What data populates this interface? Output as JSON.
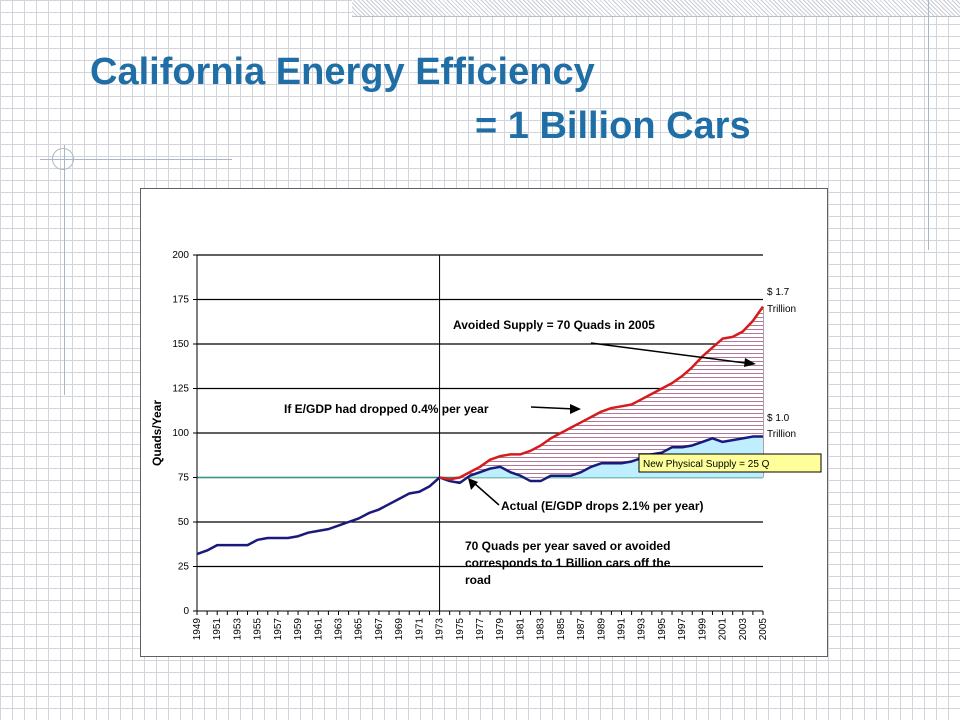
{
  "slide": {
    "title_line1": "California Energy Efficiency",
    "title_line2": "= 1 Billion Cars"
  },
  "chart_data": {
    "type": "area",
    "ylabel": "Quads/Year",
    "xlabel": "",
    "ylim": [
      0,
      200
    ],
    "yticks": [
      0,
      25,
      50,
      75,
      100,
      125,
      150,
      175,
      200
    ],
    "xlim": [
      1949,
      2005
    ],
    "xticks": [
      "1949",
      "1951",
      "1953",
      "1955",
      "1957",
      "1959",
      "1961",
      "1963",
      "1965",
      "1967",
      "1969",
      "1971",
      "1973",
      "1975",
      "1977",
      "1979",
      "1981",
      "1983",
      "1985",
      "1987",
      "1989",
      "1991",
      "1993",
      "1995",
      "1997",
      "1999",
      "2001",
      "2003",
      "2005"
    ],
    "grid": "horizontal",
    "reference_year": 1973,
    "baseline_value": 75,
    "series": [
      {
        "name": "",
        "color": "#1a1a7a",
        "points": [
          [
            1949,
            32
          ],
          [
            1950,
            34
          ],
          [
            1951,
            37
          ],
          [
            1952,
            37
          ],
          [
            1953,
            37
          ],
          [
            1954,
            37
          ],
          [
            1955,
            40
          ],
          [
            1956,
            41
          ],
          [
            1957,
            41
          ],
          [
            1958,
            41
          ],
          [
            1959,
            42
          ],
          [
            1960,
            44
          ],
          [
            1961,
            45
          ],
          [
            1962,
            46
          ],
          [
            1963,
            48
          ],
          [
            1964,
            50
          ],
          [
            1965,
            52
          ],
          [
            1966,
            55
          ],
          [
            1967,
            57
          ],
          [
            1968,
            60
          ],
          [
            1969,
            63
          ],
          [
            1970,
            66
          ],
          [
            1971,
            67
          ],
          [
            1972,
            70
          ],
          [
            1973,
            75
          ],
          [
            1974,
            73
          ],
          [
            1975,
            72
          ],
          [
            1976,
            76
          ],
          [
            1977,
            78
          ],
          [
            1978,
            80
          ],
          [
            1979,
            81
          ],
          [
            1980,
            78
          ],
          [
            1981,
            76
          ],
          [
            1982,
            73
          ],
          [
            1983,
            73
          ],
          [
            1984,
            76
          ],
          [
            1985,
            76
          ],
          [
            1986,
            76
          ],
          [
            1987,
            78
          ],
          [
            1988,
            81
          ],
          [
            1989,
            83
          ],
          [
            1990,
            83
          ],
          [
            1991,
            83
          ],
          [
            1992,
            84
          ],
          [
            1993,
            86
          ],
          [
            1994,
            88
          ],
          [
            1995,
            89
          ],
          [
            1996,
            92
          ],
          [
            1997,
            92
          ],
          [
            1998,
            93
          ],
          [
            1999,
            95
          ],
          [
            2000,
            97
          ],
          [
            2001,
            95
          ],
          [
            2002,
            96
          ],
          [
            2003,
            97
          ],
          [
            2004,
            98
          ],
          [
            2005,
            98
          ]
        ]
      },
      {
        "name": "",
        "color": "#d41c1c",
        "points": [
          [
            1973,
            75
          ],
          [
            1974,
            74
          ],
          [
            1975,
            75
          ],
          [
            1976,
            78
          ],
          [
            1977,
            81
          ],
          [
            1978,
            85
          ],
          [
            1979,
            87
          ],
          [
            1980,
            88
          ],
          [
            1981,
            88
          ],
          [
            1982,
            90
          ],
          [
            1983,
            93
          ],
          [
            1984,
            97
          ],
          [
            1985,
            100
          ],
          [
            1986,
            103
          ],
          [
            1987,
            106
          ],
          [
            1988,
            109
          ],
          [
            1989,
            112
          ],
          [
            1990,
            114
          ],
          [
            1991,
            115
          ],
          [
            1992,
            116
          ],
          [
            1993,
            119
          ],
          [
            1994,
            122
          ],
          [
            1995,
            125
          ],
          [
            1996,
            128
          ],
          [
            1997,
            132
          ],
          [
            1998,
            137
          ],
          [
            1999,
            143
          ],
          [
            2000,
            148
          ],
          [
            2001,
            153
          ],
          [
            2002,
            154
          ],
          [
            2003,
            157
          ],
          [
            2004,
            163
          ],
          [
            2005,
            171
          ]
        ]
      }
    ],
    "annotations": {
      "avoided": "Avoided Supply = 70 Quads in 2005",
      "if_dropped": "If E/GDP had dropped 0.4% per year",
      "actual": "Actual (E/GDP drops 2.1% per year)",
      "physical": "New Physical Supply = 25 Q",
      "saved_line1": "70 Quads per year saved or avoided",
      "saved_line2": "corresponds to 1 Billion cars off the",
      "saved_line3": "road",
      "top_value": "$ 1.7",
      "top_unit": "Trillion",
      "mid_value": "$ 1.0",
      "mid_unit": "Trillion"
    },
    "colors": {
      "avoided_fill": "#c8a0b8",
      "physical_fill": "#bfefff",
      "label_box": "#ffff99"
    }
  }
}
